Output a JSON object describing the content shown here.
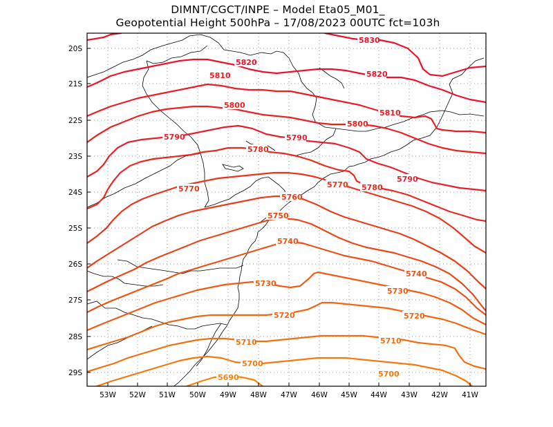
{
  "title_line1": "DIMNT/CGCT/INPE –  Model Eta05_M01_",
  "title_line2": "Geopotential Height 500hPa –  17/08/2023 00UTC fct=103h",
  "lat_ticks": [
    "20S",
    "21S",
    "22S",
    "23S",
    "24S",
    "25S",
    "26S",
    "27S",
    "28S",
    "29S"
  ],
  "lon_ticks": [
    "53W",
    "52W",
    "51W",
    "50W",
    "49W",
    "48W",
    "47W",
    "46W",
    "45W",
    "44W",
    "43W",
    "42W",
    "41W"
  ],
  "contours": [
    {
      "value": 5830,
      "color": "#f0102a"
    },
    {
      "value": 5820,
      "color": "#f0102a"
    },
    {
      "value": 5810,
      "color": "#ef1a22"
    },
    {
      "value": 5800,
      "color": "#ec2020"
    },
    {
      "value": 5790,
      "color": "#e81e2a"
    },
    {
      "value": 5780,
      "color": "#e82a1e"
    },
    {
      "value": 5770,
      "color": "#e8341c"
    },
    {
      "value": 5760,
      "color": "#ea3c18"
    },
    {
      "value": 5750,
      "color": "#ec4616"
    },
    {
      "value": 5740,
      "color": "#ee5014"
    },
    {
      "value": 5730,
      "color": "#f05a12"
    },
    {
      "value": 5720,
      "color": "#f26410"
    },
    {
      "value": 5710,
      "color": "#f46e0e"
    },
    {
      "value": 5700,
      "color": "#f6780c"
    },
    {
      "value": 5690,
      "color": "#f8820a"
    }
  ],
  "labels": {
    "l5830": "5830",
    "l5820a": "5820",
    "l5820b": "5820",
    "l5810a": "5810",
    "l5810b": "5810",
    "l5800a": "5800",
    "l5800b": "5800",
    "l5790a": "5790",
    "l5790b": "5790",
    "l5790c": "5790",
    "l5780a": "5780",
    "l5780b": "5780",
    "l5770a": "5770",
    "l5770b": "5770",
    "l5760": "5760",
    "l5750": "5750",
    "l5740a": "5740",
    "l5740b": "5740",
    "l5730a": "5730",
    "l5730b": "5730",
    "l5720a": "5720",
    "l5720b": "5720",
    "l5710a": "5710",
    "l5710b": "5710",
    "l5700a": "5700",
    "l5700b": "5700",
    "l5690": "5690"
  }
}
